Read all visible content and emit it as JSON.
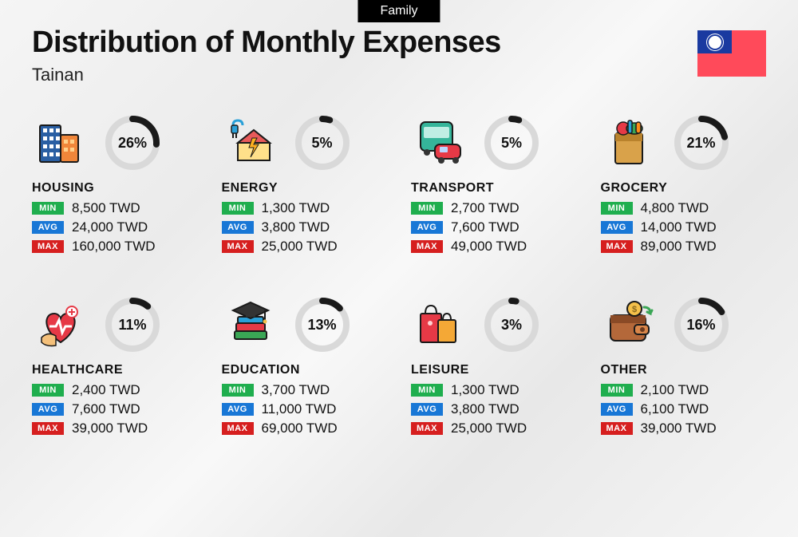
{
  "tag": "Family",
  "title": "Distribution of Monthly Expenses",
  "subtitle": "Tainan",
  "currency": "TWD",
  "labels": {
    "min": "MIN",
    "avg": "AVG",
    "max": "MAX"
  },
  "donut": {
    "track_color": "#d9d9d9",
    "fill_color": "#1a1a1a",
    "stroke_width": 8,
    "radius": 30,
    "size": 72,
    "label_fontsize": 18
  },
  "tag_colors": {
    "min": "#1fae4e",
    "avg": "#1877d6",
    "max": "#d61f1f"
  },
  "flag_colors": {
    "field": "#ff4a5a",
    "canton": "#1a3aa0",
    "sun": "#ffffff"
  },
  "background": "linear-gradient(135deg,#f5f5f5 0%,#ebebeb 30%,#f8f8f8 50%,#e8e8e8 70%,#f5f5f5 100%)",
  "categories": [
    {
      "key": "housing",
      "name": "HOUSING",
      "percent": 26,
      "min": "8,500",
      "avg": "24,000",
      "max": "160,000",
      "icon": "buildings-icon"
    },
    {
      "key": "energy",
      "name": "ENERGY",
      "percent": 5,
      "min": "1,300",
      "avg": "3,800",
      "max": "25,000",
      "icon": "energy-house-icon"
    },
    {
      "key": "transport",
      "name": "TRANSPORT",
      "percent": 5,
      "min": "2,700",
      "avg": "7,600",
      "max": "49,000",
      "icon": "bus-car-icon"
    },
    {
      "key": "grocery",
      "name": "GROCERY",
      "percent": 21,
      "min": "4,800",
      "avg": "14,000",
      "max": "89,000",
      "icon": "grocery-bag-icon"
    },
    {
      "key": "healthcare",
      "name": "HEALTHCARE",
      "percent": 11,
      "min": "2,400",
      "avg": "7,600",
      "max": "39,000",
      "icon": "heart-care-icon"
    },
    {
      "key": "education",
      "name": "EDUCATION",
      "percent": 13,
      "min": "3,700",
      "avg": "11,000",
      "max": "69,000",
      "icon": "grad-cap-books-icon"
    },
    {
      "key": "leisure",
      "name": "LEISURE",
      "percent": 3,
      "min": "1,300",
      "avg": "3,800",
      "max": "25,000",
      "icon": "shopping-bags-icon"
    },
    {
      "key": "other",
      "name": "OTHER",
      "percent": 16,
      "min": "2,100",
      "avg": "6,100",
      "max": "39,000",
      "icon": "wallet-icon"
    }
  ]
}
